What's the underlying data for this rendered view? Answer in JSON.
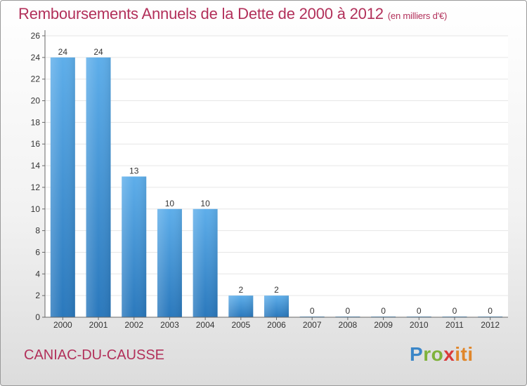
{
  "title": "Remboursements Annuels de la Dette de 2000 à 2012",
  "subtitle": "(en milliers d'€)",
  "commune": "CANIAC-DU-CAUSSE",
  "brand": {
    "p1": "P",
    "p2": "ro",
    "p3": "x",
    "p4": "iti"
  },
  "colors": {
    "title": "#b2305a",
    "bar_top": "#5eaeea",
    "bar_bottom": "#2a78bc",
    "grid": "#e6e6e6",
    "axis": "#666666"
  },
  "chart_data": {
    "type": "bar",
    "categories": [
      "2000",
      "2001",
      "2002",
      "2003",
      "2004",
      "2005",
      "2006",
      "2007",
      "2008",
      "2009",
      "2010",
      "2011",
      "2012"
    ],
    "values": [
      24,
      24,
      13,
      10,
      10,
      2,
      2,
      0,
      0,
      0,
      0,
      0,
      0
    ],
    "ylim": [
      0,
      26
    ],
    "yticks": [
      0,
      2,
      4,
      6,
      8,
      10,
      12,
      14,
      16,
      18,
      20,
      22,
      24,
      26
    ],
    "grid": true,
    "xlabel": "",
    "ylabel": ""
  }
}
